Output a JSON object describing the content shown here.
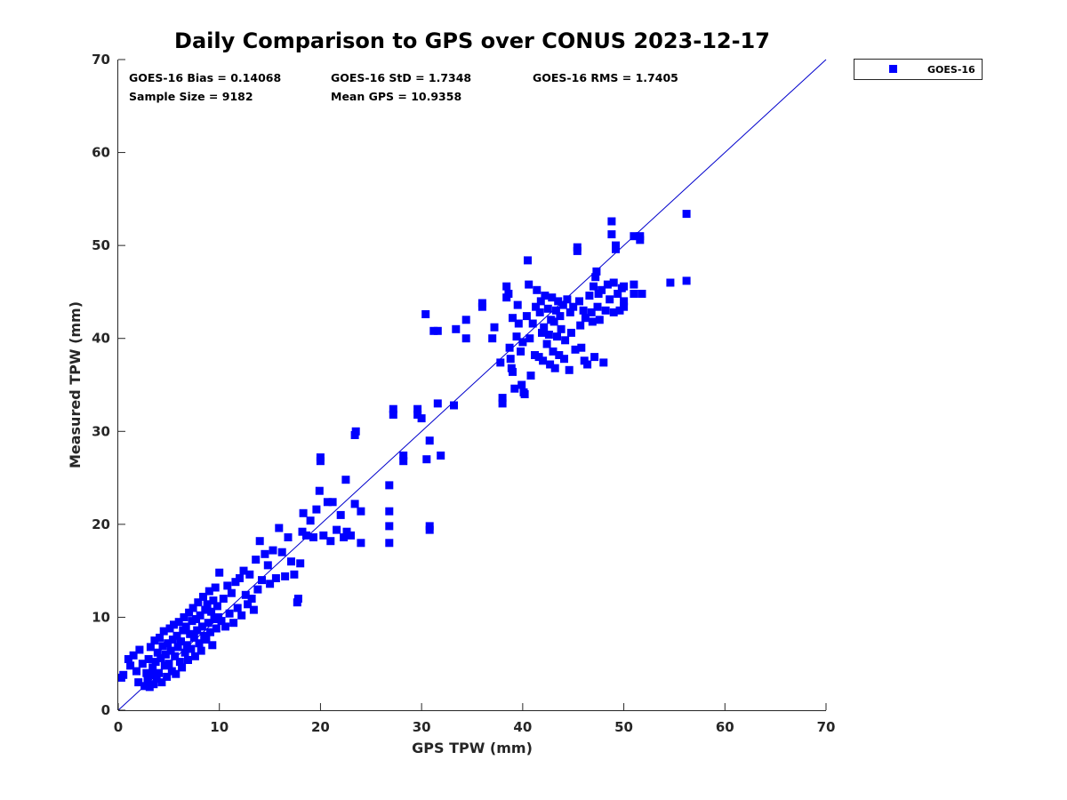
{
  "chart_data": {
    "type": "scatter",
    "title": "Daily Comparison to GPS over CONUS 2023-12-17",
    "xlabel": "GPS TPW (mm)",
    "ylabel": "Measured TPW (mm)",
    "xlim": [
      0,
      70
    ],
    "ylim": [
      0,
      70
    ],
    "xticks": [
      "0",
      "10",
      "20",
      "30",
      "40",
      "50",
      "60",
      "70"
    ],
    "yticks": [
      "0",
      "10",
      "20",
      "30",
      "40",
      "50",
      "60",
      "70"
    ],
    "grid": false,
    "legend": {
      "placement": "outside-top-right",
      "entries": [
        "GOES-16"
      ]
    },
    "reference_line": {
      "type": "one-to-one",
      "from": [
        0,
        0
      ],
      "to": [
        70,
        70
      ],
      "color": "#0000cc"
    },
    "stats": [
      {
        "text": "GOES-16 Bias = 0.14068"
      },
      {
        "text": "GOES-16 StD = 1.7348"
      },
      {
        "text": "GOES-16 RMS = 1.7405"
      },
      {
        "text": "Sample Size = 9182"
      },
      {
        "text": "Mean GPS = 10.9358"
      }
    ],
    "colors": {
      "series": "#0000ff",
      "line": "#0000cc",
      "axis": "#262626"
    },
    "series": [
      {
        "name": "GOES-16",
        "points": [
          [
            0.3,
            3.5
          ],
          [
            0.5,
            3.8
          ],
          [
            1.0,
            5.5
          ],
          [
            1.2,
            4.8
          ],
          [
            1.5,
            5.9
          ],
          [
            1.8,
            4.2
          ],
          [
            2.1,
            6.5
          ],
          [
            2.0,
            3.0
          ],
          [
            2.4,
            5.0
          ],
          [
            2.6,
            2.6
          ],
          [
            2.8,
            4.0
          ],
          [
            2.9,
            3.2
          ],
          [
            3.0,
            5.5
          ],
          [
            3.1,
            2.5
          ],
          [
            3.2,
            6.8
          ],
          [
            3.3,
            3.8
          ],
          [
            3.4,
            4.6
          ],
          [
            3.5,
            2.8
          ],
          [
            3.6,
            7.5
          ],
          [
            3.7,
            5.2
          ],
          [
            3.8,
            3.4
          ],
          [
            3.9,
            6.2
          ],
          [
            4.0,
            4.0
          ],
          [
            4.1,
            7.8
          ],
          [
            4.2,
            5.6
          ],
          [
            4.3,
            3.0
          ],
          [
            4.4,
            6.9
          ],
          [
            4.5,
            8.5
          ],
          [
            4.6,
            4.8
          ],
          [
            4.7,
            6.0
          ],
          [
            4.8,
            3.6
          ],
          [
            4.9,
            7.2
          ],
          [
            5.0,
            5.0
          ],
          [
            5.1,
            8.8
          ],
          [
            5.2,
            6.4
          ],
          [
            5.3,
            4.2
          ],
          [
            5.4,
            7.6
          ],
          [
            5.5,
            9.2
          ],
          [
            5.6,
            5.8
          ],
          [
            5.7,
            3.9
          ],
          [
            5.8,
            8.0
          ],
          [
            5.9,
            6.8
          ],
          [
            6.0,
            9.5
          ],
          [
            6.1,
            5.2
          ],
          [
            6.2,
            7.4
          ],
          [
            6.3,
            4.6
          ],
          [
            6.4,
            8.6
          ],
          [
            6.5,
            10.0
          ],
          [
            6.6,
            6.2
          ],
          [
            6.7,
            9.0
          ],
          [
            6.8,
            7.0
          ],
          [
            6.9,
            5.4
          ],
          [
            7.0,
            10.5
          ],
          [
            7.1,
            8.2
          ],
          [
            7.2,
            6.6
          ],
          [
            7.3,
            9.6
          ],
          [
            7.4,
            11.0
          ],
          [
            7.5,
            7.8
          ],
          [
            7.6,
            5.8
          ],
          [
            7.7,
            9.8
          ],
          [
            7.8,
            8.6
          ],
          [
            7.9,
            11.6
          ],
          [
            8.0,
            7.2
          ],
          [
            8.1,
            10.2
          ],
          [
            8.2,
            6.4
          ],
          [
            8.3,
            9.0
          ],
          [
            8.4,
            12.2
          ],
          [
            8.5,
            8.0
          ],
          [
            8.6,
            10.8
          ],
          [
            8.7,
            7.6
          ],
          [
            8.8,
            11.4
          ],
          [
            8.9,
            9.4
          ],
          [
            9.0,
            12.8
          ],
          [
            9.1,
            8.4
          ],
          [
            9.2,
            10.6
          ],
          [
            9.3,
            7.0
          ],
          [
            9.4,
            11.8
          ],
          [
            9.5,
            9.8
          ],
          [
            9.6,
            13.2
          ],
          [
            9.7,
            8.8
          ],
          [
            9.8,
            11.2
          ],
          [
            9.9,
            10.0
          ],
          [
            10.0,
            14.8
          ],
          [
            10.2,
            9.6
          ],
          [
            10.4,
            12.0
          ],
          [
            10.6,
            9.0
          ],
          [
            10.8,
            13.4
          ],
          [
            11.0,
            10.4
          ],
          [
            11.2,
            12.6
          ],
          [
            11.4,
            9.4
          ],
          [
            11.6,
            13.8
          ],
          [
            11.8,
            11.0
          ],
          [
            12.0,
            14.2
          ],
          [
            12.2,
            10.2
          ],
          [
            12.4,
            15.0
          ],
          [
            12.6,
            12.4
          ],
          [
            12.8,
            11.4
          ],
          [
            13.0,
            14.6
          ],
          [
            13.2,
            12.0
          ],
          [
            13.4,
            10.8
          ],
          [
            13.6,
            16.2
          ],
          [
            13.8,
            13.0
          ],
          [
            14.0,
            18.2
          ],
          [
            14.2,
            14.0
          ],
          [
            14.5,
            16.8
          ],
          [
            14.8,
            15.6
          ],
          [
            15.0,
            13.6
          ],
          [
            15.3,
            17.2
          ],
          [
            15.6,
            14.2
          ],
          [
            15.9,
            19.6
          ],
          [
            16.2,
            17.0
          ],
          [
            16.5,
            14.4
          ],
          [
            16.8,
            18.6
          ],
          [
            17.1,
            16.0
          ],
          [
            17.4,
            14.6
          ],
          [
            17.7,
            11.6
          ],
          [
            17.8,
            12.0
          ],
          [
            18.0,
            15.8
          ],
          [
            18.2,
            19.2
          ],
          [
            18.3,
            21.2
          ],
          [
            18.6,
            18.8
          ],
          [
            19.0,
            20.4
          ],
          [
            19.3,
            18.6
          ],
          [
            19.6,
            21.6
          ],
          [
            19.9,
            23.6
          ],
          [
            20.0,
            27.2
          ],
          [
            20.0,
            26.8
          ],
          [
            20.3,
            18.8
          ],
          [
            20.7,
            22.4
          ],
          [
            21.0,
            18.2
          ],
          [
            21.2,
            22.4
          ],
          [
            21.6,
            19.4
          ],
          [
            22.0,
            21.0
          ],
          [
            22.3,
            18.6
          ],
          [
            22.5,
            24.8
          ],
          [
            22.6,
            19.2
          ],
          [
            23.0,
            18.8
          ],
          [
            23.4,
            29.6
          ],
          [
            23.5,
            30.0
          ],
          [
            23.4,
            22.2
          ],
          [
            24.0,
            18.0
          ],
          [
            24.0,
            21.4
          ],
          [
            26.8,
            24.2
          ],
          [
            26.8,
            21.4
          ],
          [
            26.8,
            19.8
          ],
          [
            26.8,
            18.0
          ],
          [
            27.2,
            32.4
          ],
          [
            27.2,
            31.8
          ],
          [
            28.2,
            27.4
          ],
          [
            28.2,
            26.8
          ],
          [
            29.6,
            32.4
          ],
          [
            29.6,
            31.8
          ],
          [
            30.0,
            31.4
          ],
          [
            30.4,
            42.6
          ],
          [
            30.5,
            27.0
          ],
          [
            30.8,
            29.0
          ],
          [
            30.8,
            19.8
          ],
          [
            30.8,
            19.4
          ],
          [
            31.2,
            40.8
          ],
          [
            31.6,
            40.8
          ],
          [
            31.6,
            33.0
          ],
          [
            31.9,
            27.4
          ],
          [
            33.2,
            32.8
          ],
          [
            33.4,
            41.0
          ],
          [
            34.4,
            40.0
          ],
          [
            34.4,
            42.0
          ],
          [
            36.0,
            43.8
          ],
          [
            36.0,
            43.4
          ],
          [
            37.0,
            40.0
          ],
          [
            37.2,
            41.2
          ],
          [
            37.8,
            37.4
          ],
          [
            38.0,
            33.0
          ],
          [
            38.0,
            33.6
          ],
          [
            38.4,
            44.4
          ],
          [
            38.4,
            45.6
          ],
          [
            38.6,
            44.8
          ],
          [
            38.7,
            39.0
          ],
          [
            38.8,
            37.8
          ],
          [
            38.9,
            36.8
          ],
          [
            39.0,
            42.2
          ],
          [
            39.0,
            36.4
          ],
          [
            39.2,
            34.6
          ],
          [
            39.4,
            40.2
          ],
          [
            39.5,
            43.6
          ],
          [
            39.6,
            41.6
          ],
          [
            39.8,
            38.6
          ],
          [
            39.9,
            35.0
          ],
          [
            40.0,
            39.6
          ],
          [
            40.1,
            34.2
          ],
          [
            40.2,
            34.0
          ],
          [
            40.4,
            42.4
          ],
          [
            40.5,
            48.4
          ],
          [
            40.6,
            45.8
          ],
          [
            40.7,
            40.0
          ],
          [
            40.8,
            36.0
          ],
          [
            41.0,
            41.6
          ],
          [
            41.2,
            38.2
          ],
          [
            41.3,
            43.4
          ],
          [
            41.4,
            45.2
          ],
          [
            41.6,
            38.0
          ],
          [
            41.7,
            42.8
          ],
          [
            41.8,
            44.0
          ],
          [
            41.9,
            40.6
          ],
          [
            42.0,
            37.6
          ],
          [
            42.1,
            41.2
          ],
          [
            42.2,
            44.6
          ],
          [
            42.4,
            39.4
          ],
          [
            42.5,
            43.2
          ],
          [
            42.6,
            40.4
          ],
          [
            42.7,
            37.2
          ],
          [
            42.8,
            42.0
          ],
          [
            42.9,
            44.4
          ],
          [
            43.0,
            38.6
          ],
          [
            43.1,
            41.8
          ],
          [
            43.2,
            36.8
          ],
          [
            43.3,
            43.0
          ],
          [
            43.4,
            40.2
          ],
          [
            43.5,
            44.0
          ],
          [
            43.6,
            38.2
          ],
          [
            43.7,
            42.4
          ],
          [
            43.8,
            41.0
          ],
          [
            44.0,
            43.6
          ],
          [
            44.1,
            37.8
          ],
          [
            44.2,
            39.8
          ],
          [
            44.4,
            44.2
          ],
          [
            44.6,
            36.6
          ],
          [
            44.7,
            42.8
          ],
          [
            44.8,
            40.6
          ],
          [
            45.0,
            43.4
          ],
          [
            45.2,
            38.8
          ],
          [
            45.4,
            49.4
          ],
          [
            45.4,
            49.8
          ],
          [
            45.6,
            44.0
          ],
          [
            45.7,
            41.4
          ],
          [
            45.8,
            39.0
          ],
          [
            46.0,
            43.0
          ],
          [
            46.1,
            37.6
          ],
          [
            46.2,
            42.2
          ],
          [
            46.4,
            37.2
          ],
          [
            46.6,
            44.6
          ],
          [
            46.8,
            42.8
          ],
          [
            46.9,
            41.8
          ],
          [
            47.0,
            45.6
          ],
          [
            47.1,
            38.0
          ],
          [
            47.2,
            46.6
          ],
          [
            47.3,
            47.2
          ],
          [
            47.4,
            43.4
          ],
          [
            47.5,
            44.8
          ],
          [
            47.6,
            42.0
          ],
          [
            47.8,
            45.2
          ],
          [
            48.0,
            37.4
          ],
          [
            48.2,
            43.0
          ],
          [
            48.4,
            45.8
          ],
          [
            48.6,
            44.2
          ],
          [
            48.8,
            52.6
          ],
          [
            48.8,
            51.2
          ],
          [
            49.0,
            42.8
          ],
          [
            49.0,
            46.0
          ],
          [
            49.2,
            49.6
          ],
          [
            49.2,
            50.0
          ],
          [
            49.4,
            44.8
          ],
          [
            49.6,
            43.0
          ],
          [
            49.8,
            45.4
          ],
          [
            50.0,
            44.0
          ],
          [
            50.0,
            43.4
          ],
          [
            50.0,
            45.6
          ],
          [
            51.0,
            51.0
          ],
          [
            51.0,
            45.8
          ],
          [
            51.0,
            44.8
          ],
          [
            51.6,
            51.0
          ],
          [
            51.6,
            50.6
          ],
          [
            51.8,
            44.8
          ],
          [
            54.6,
            46.0
          ],
          [
            56.2,
            53.4
          ],
          [
            56.2,
            46.2
          ]
        ]
      }
    ]
  }
}
